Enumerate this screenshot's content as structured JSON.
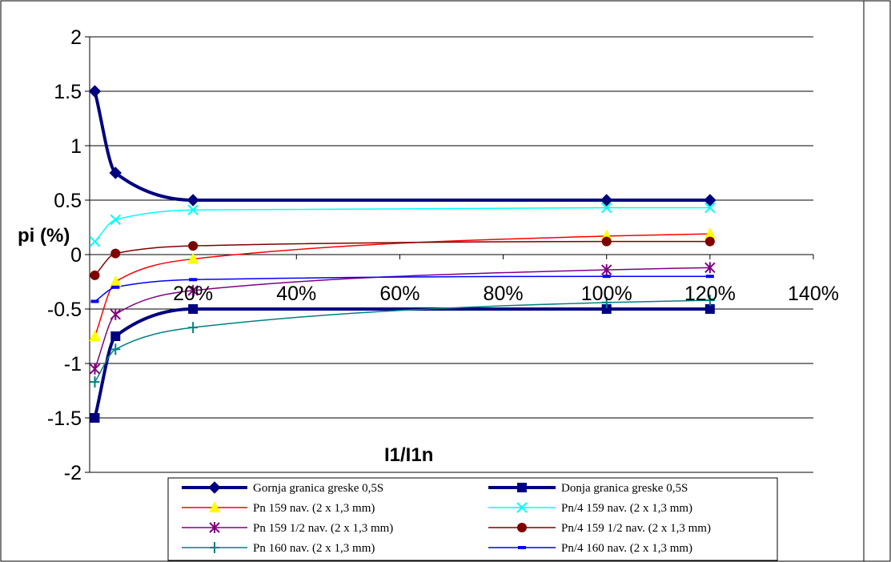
{
  "chart_data": {
    "type": "line",
    "xlabel": "I1/I1n",
    "ylabel": "pi (%)",
    "ylim": [
      -2,
      2
    ],
    "xlim": [
      0,
      140
    ],
    "x_ticks": [
      {
        "value": 20,
        "label": "20%"
      },
      {
        "value": 40,
        "label": "40%"
      },
      {
        "value": 60,
        "label": "60%"
      },
      {
        "value": 80,
        "label": "80%"
      },
      {
        "value": 100,
        "label": "100%"
      },
      {
        "value": 120,
        "label": "120%"
      },
      {
        "value": 140,
        "label": "140%"
      }
    ],
    "y_ticks": [
      {
        "value": 2,
        "label": "2"
      },
      {
        "value": 1.5,
        "label": "1.5"
      },
      {
        "value": 1,
        "label": "1"
      },
      {
        "value": 0.5,
        "label": "0.5"
      },
      {
        "value": 0,
        "label": "0"
      },
      {
        "value": -0.5,
        "label": "-0.5"
      },
      {
        "value": -1,
        "label": "-1"
      },
      {
        "value": -1.5,
        "label": "-1.5"
      },
      {
        "value": -2,
        "label": "-2"
      }
    ],
    "grid": "horizontal",
    "legend_position": "bottom",
    "series": [
      {
        "name": "Gornja granica greske 0,5S",
        "color": "#000080",
        "marker": "diamond",
        "width": 4,
        "x": [
          1,
          5,
          20,
          100,
          120
        ],
        "y": [
          1.5,
          0.75,
          0.5,
          0.5,
          0.5
        ]
      },
      {
        "name": "Donja granica greske 0,5S",
        "color": "#000080",
        "marker": "square",
        "width": 4,
        "x": [
          1,
          5,
          20,
          100,
          120
        ],
        "y": [
          -1.5,
          -0.75,
          -0.5,
          -0.5,
          -0.5
        ]
      },
      {
        "name": "Pn  159 nav. (2 x   1,3 mm)",
        "color": "#ff0000",
        "marker": "triangle",
        "marker_color": "#ffff00",
        "width": 1.5,
        "x": [
          1,
          5,
          20,
          100,
          120
        ],
        "y": [
          -0.75,
          -0.25,
          -0.04,
          0.17,
          0.19
        ]
      },
      {
        "name": "Pn/4  159 nav. (2 x   1,3 mm)",
        "color": "#00ffff",
        "marker": "x",
        "width": 1.5,
        "x": [
          1,
          5,
          20,
          100,
          120
        ],
        "y": [
          0.12,
          0.32,
          0.41,
          0.43,
          0.43
        ]
      },
      {
        "name": "Pn  159 1/2 nav. (2 x   1,3 mm)",
        "color": "#800080",
        "marker": "star",
        "width": 1.5,
        "x": [
          1,
          5,
          20,
          100,
          120
        ],
        "y": [
          -1.05,
          -0.55,
          -0.33,
          -0.14,
          -0.12
        ]
      },
      {
        "name": "Pn/4  159 1/2 nav. (2 x   1,3 mm)",
        "color": "#800000",
        "marker": "circle",
        "width": 1.5,
        "x": [
          1,
          5,
          20,
          100,
          120
        ],
        "y": [
          -0.19,
          0.01,
          0.08,
          0.12,
          0.12
        ]
      },
      {
        "name": "Pn  160 nav. (2 x   1,3 mm)",
        "color": "#008080",
        "marker": "plus",
        "width": 1.5,
        "x": [
          1,
          5,
          20,
          100,
          120
        ],
        "y": [
          -1.17,
          -0.87,
          -0.67,
          -0.44,
          -0.42
        ]
      },
      {
        "name": "Pn/4  160 nav. (2 x   1,3 mm)",
        "color": "#0000ff",
        "marker": "dash",
        "width": 1.5,
        "x": [
          1,
          5,
          20,
          100,
          120
        ],
        "y": [
          -0.43,
          -0.3,
          -0.23,
          -0.2,
          -0.2
        ]
      }
    ]
  }
}
